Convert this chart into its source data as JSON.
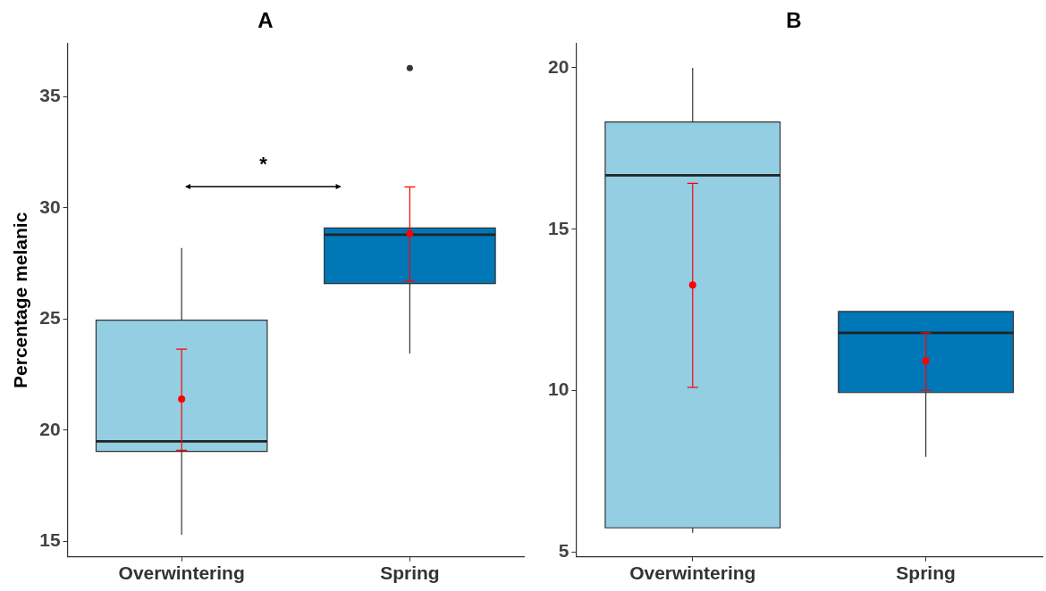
{
  "chart_data": [
    {
      "type": "box",
      "title": "A",
      "ylabel": "Percentage melanic",
      "categories": [
        "Overwintering",
        "Spring"
      ],
      "ylim": [
        14.3,
        37.4
      ],
      "yticks": [
        15,
        20,
        25,
        30,
        35
      ],
      "annotations": [
        "*"
      ],
      "series": [
        {
          "type": "box",
          "colors": [
            "#94cee3",
            "#0077b6"
          ],
          "boxes": [
            {
              "low": 15.3,
              "q1": 19.05,
              "median": 19.5,
              "q3": 24.95,
              "high": 28.2
            },
            {
              "low": 23.45,
              "q1": 26.6,
              "median": 28.8,
              "q3": 29.1,
              "high": 29.1,
              "outliers": [
                36.3
              ]
            }
          ]
        },
        {
          "type": "scatter",
          "color": "#ff0000",
          "marker": "circle",
          "x": [
            "Overwintering",
            "Spring"
          ],
          "values": [
            21.4,
            28.85
          ],
          "errors": [
            [
              19.1,
              23.65
            ],
            [
              26.7,
              30.95
            ]
          ]
        }
      ]
    },
    {
      "type": "box",
      "title": "B",
      "categories": [
        "Overwintering",
        "Spring"
      ],
      "ylim": [
        4.85,
        20.75
      ],
      "yticks": [
        5,
        10,
        15,
        20
      ],
      "series": [
        {
          "type": "box",
          "colors": [
            "#94cee3",
            "#0077b6"
          ],
          "boxes": [
            {
              "low": 5.6,
              "q1": 5.75,
              "median": 16.67,
              "q3": 18.32,
              "high": 20.0
            },
            {
              "low": 7.95,
              "q1": 9.94,
              "median": 11.79,
              "q3": 12.45,
              "high": 12.45
            }
          ]
        },
        {
          "type": "scatter",
          "color": "#ff0000",
          "marker": "circle",
          "x": [
            "Overwintering",
            "Spring"
          ],
          "values": [
            13.27,
            10.92
          ],
          "errors": [
            [
              10.1,
              16.42
            ],
            [
              10.01,
              11.79
            ]
          ]
        }
      ]
    }
  ]
}
